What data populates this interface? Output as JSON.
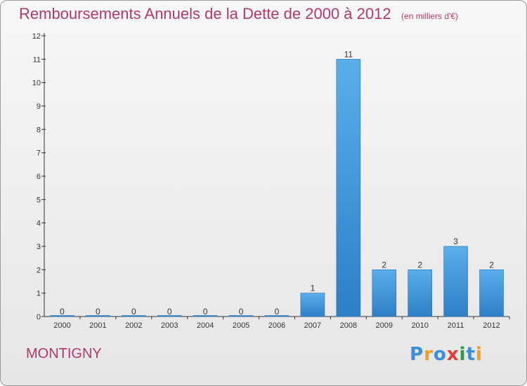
{
  "title": "Remboursements Annuels de la Dette de 2000 à 2012",
  "unit_note": "(en milliers d'€)",
  "commune": "MONTIGNY",
  "brand": {
    "text": "Proxiti",
    "letter_colors": [
      "#3a8fd8",
      "#f0a020",
      "#3a8fd8",
      "#e83a3a",
      "#2a9a4a",
      "#3a8fd8",
      "#f0a020"
    ]
  },
  "colors": {
    "title": "#b03a6b",
    "bar_light": "#5aaeea",
    "bar_dark": "#2e7fc6",
    "axis": "#333333"
  },
  "chart_data": {
    "type": "bar",
    "title": "Remboursements Annuels de la Dette de 2000 à 2012",
    "categories": [
      "2000",
      "2001",
      "2002",
      "2003",
      "2004",
      "2005",
      "2006",
      "2007",
      "2008",
      "2009",
      "2010",
      "2011",
      "2012"
    ],
    "values": [
      0,
      0,
      0,
      0,
      0,
      0,
      0,
      1,
      11,
      2,
      2,
      3,
      2
    ],
    "ylim": [
      0,
      12
    ],
    "yticks": [
      0,
      1,
      2,
      3,
      4,
      5,
      6,
      7,
      8,
      9,
      10,
      11,
      12
    ],
    "grid": false,
    "data_labels": true
  }
}
